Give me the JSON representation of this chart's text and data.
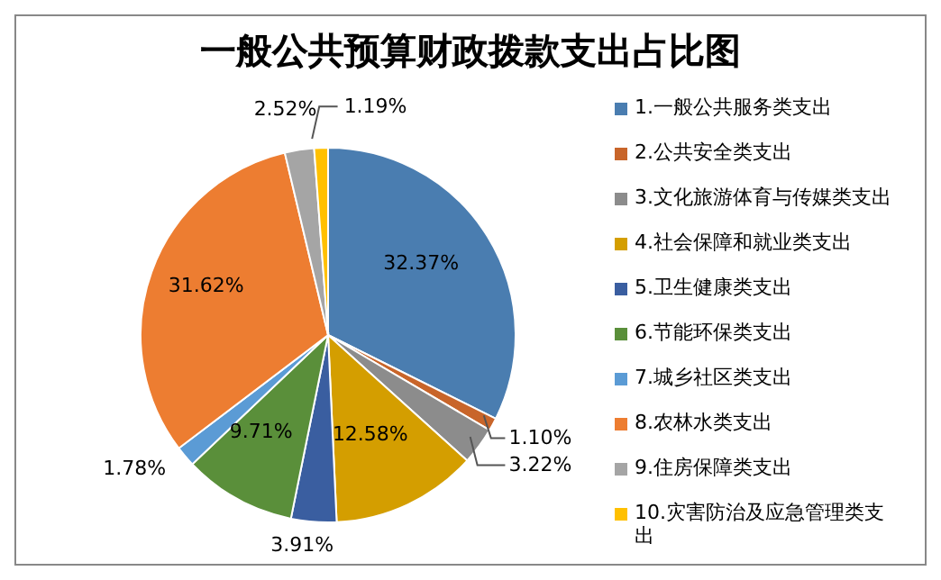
{
  "chart_data": {
    "type": "pie",
    "title": "一般公共预算财政拨款支出占比图",
    "categories": [
      "1.一般公共服务类支出",
      "2.公共安全类支出",
      "3.文化旅游体育与传媒类支出",
      "4.社会保障和就业类支出",
      "5.卫生健康类支出",
      "6.节能环保类支出",
      "7.城乡社区类支出",
      "8.农林水类支出",
      "9.住房保障类支出",
      "10.灾害防治及应急管理类支出"
    ],
    "values": [
      32.37,
      1.1,
      3.22,
      12.58,
      3.91,
      9.71,
      1.78,
      31.62,
      2.52,
      1.19
    ],
    "value_labels": [
      "32.37%",
      "1.10%",
      "3.22%",
      "12.58%",
      "3.91%",
      "9.71%",
      "1.78%",
      "31.62%",
      "2.52%",
      "1.19%"
    ],
    "colors": [
      "#4a7db0",
      "#c8652a",
      "#8c8c8c",
      "#d49e00",
      "#3a5ea0",
      "#5a8f3a",
      "#5b9bd5",
      "#ed7d31",
      "#a5a5a5",
      "#ffc000"
    ],
    "legend": "right"
  }
}
